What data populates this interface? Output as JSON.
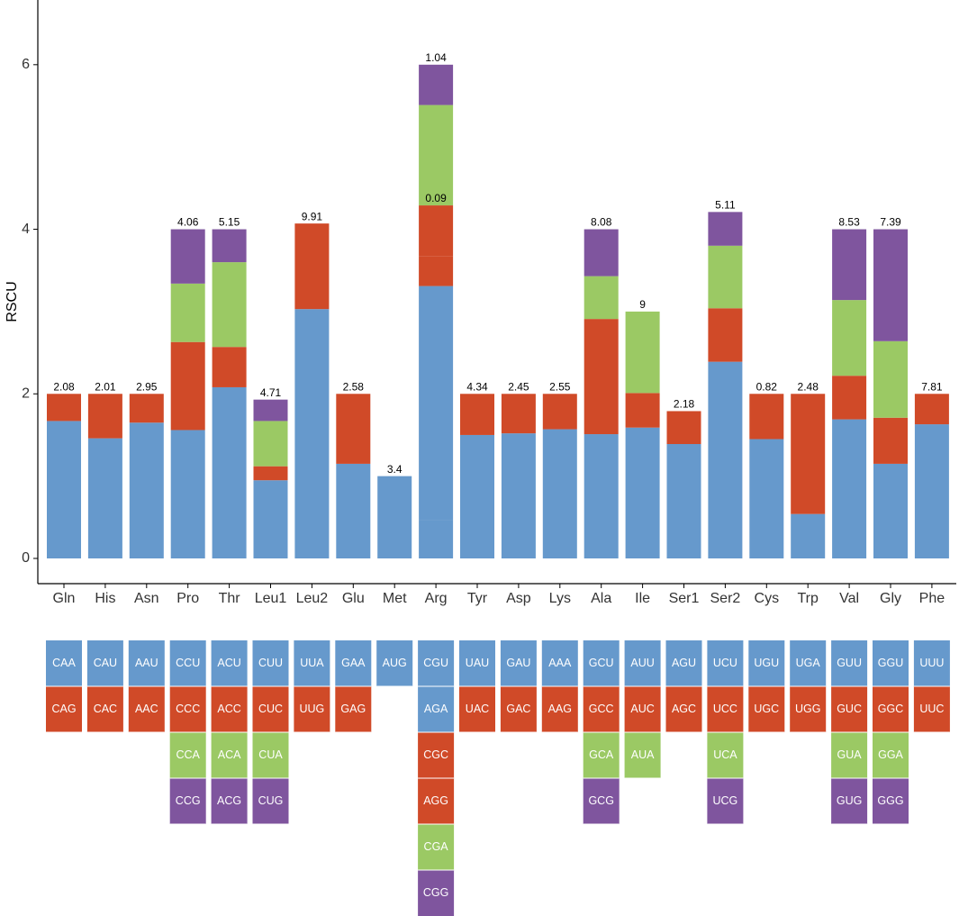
{
  "chart_data": {
    "type": "stacked-bar",
    "y_label": "RSCU",
    "categories": [
      "Gln",
      "His",
      "Asn",
      "Pro",
      "Thr",
      "Leu1",
      "Leu2",
      "Glu",
      "Met",
      "Arg",
      "Tyr",
      "Asp",
      "Lys",
      "Ala",
      "Ile",
      "Ser1",
      "Ser2",
      "Cys",
      "Trp",
      "Val",
      "Gly",
      "Phe"
    ],
    "ylim": [
      0,
      6.6
    ],
    "yticks": [
      0,
      2,
      4,
      6
    ],
    "top_labels": [
      "2.08",
      "2.01",
      "2.95",
      "4.06",
      "5.15",
      "4.71",
      "9.91",
      "2.58",
      "3.4",
      "1.04",
      "4.34",
      "2.45",
      "2.55",
      "8.08",
      "9",
      "2.18",
      "5.11",
      "0.82",
      "2.48",
      "8.53",
      "7.39",
      "7.81"
    ],
    "inner_labels": [
      null,
      null,
      null,
      null,
      null,
      null,
      null,
      null,
      null,
      "0.09",
      null,
      null,
      null,
      null,
      null,
      null,
      null,
      null,
      null,
      null,
      null,
      null
    ],
    "series": [
      {
        "color": "#6699cc",
        "values": [
          1.67,
          1.46,
          1.65,
          1.56,
          2.08,
          0.95,
          3.03,
          1.15,
          1.0,
          0.47,
          1.5,
          1.52,
          1.57,
          1.51,
          1.59,
          1.39,
          2.39,
          1.45,
          0.54,
          1.69,
          1.15,
          1.63
        ],
        "codons": [
          "CAA",
          "CAU",
          "AAU",
          "CCU",
          "ACU",
          "CUU",
          "UUA",
          "GAA",
          "AUG",
          "CGU",
          "UAU",
          "GAU",
          "AAA",
          "GCU",
          "AUU",
          "AGU",
          "UCU",
          "UGU",
          "UGA",
          "GUU",
          "GGU",
          "UUU"
        ]
      },
      {
        "color": "#6699cc",
        "values": [
          null,
          null,
          null,
          null,
          null,
          null,
          null,
          null,
          null,
          2.84,
          null,
          null,
          null,
          null,
          null,
          null,
          null,
          null,
          null,
          null,
          null,
          null
        ],
        "codons": [
          null,
          null,
          null,
          null,
          null,
          null,
          null,
          null,
          null,
          "AGA",
          null,
          null,
          null,
          null,
          null,
          null,
          null,
          null,
          null,
          null,
          null,
          null
        ]
      },
      {
        "color": "#d04a28",
        "values": [
          0.33,
          0.54,
          0.35,
          1.07,
          0.49,
          0.17,
          1.04,
          0.85,
          null,
          0.36,
          0.5,
          0.48,
          0.43,
          1.4,
          0.42,
          0.4,
          0.65,
          0.55,
          1.46,
          0.53,
          0.56,
          0.37
        ],
        "codons": [
          "CAG",
          "CAC",
          "AAC",
          "CCC",
          "ACC",
          "CUC",
          "UUG",
          "GAG",
          null,
          "CGC",
          "UAC",
          "GAC",
          "AAG",
          "GCC",
          "AUC",
          "AGC",
          "UCC",
          "UGC",
          "UGG",
          "GUC",
          "GGC",
          "UUC"
        ]
      },
      {
        "color": "#d04a28",
        "values": [
          null,
          null,
          null,
          null,
          null,
          null,
          null,
          null,
          null,
          0.62,
          null,
          null,
          null,
          null,
          null,
          null,
          null,
          null,
          null,
          null,
          null,
          null
        ],
        "codons": [
          null,
          null,
          null,
          null,
          null,
          null,
          null,
          null,
          null,
          "AGG",
          null,
          null,
          null,
          null,
          null,
          null,
          null,
          null,
          null,
          null,
          null,
          null
        ]
      },
      {
        "color": "#9bc964",
        "values": [
          null,
          null,
          null,
          0.71,
          1.03,
          0.55,
          null,
          null,
          null,
          1.22,
          null,
          null,
          null,
          0.52,
          0.99,
          null,
          0.76,
          null,
          null,
          0.92,
          0.93,
          null
        ],
        "codons": [
          null,
          null,
          null,
          "CCA",
          "ACA",
          "CUA",
          null,
          null,
          null,
          "CGA",
          null,
          null,
          null,
          "GCA",
          "AUA",
          null,
          "UCA",
          null,
          null,
          "GUA",
          "GGA",
          null
        ]
      },
      {
        "color": "#7f559e",
        "values": [
          null,
          null,
          null,
          0.66,
          0.4,
          0.26,
          null,
          null,
          null,
          0.49,
          null,
          null,
          null,
          0.57,
          null,
          null,
          0.41,
          null,
          null,
          0.86,
          1.36,
          null
        ],
        "codons": [
          null,
          null,
          null,
          "CCG",
          "ACG",
          "CUG",
          null,
          null,
          null,
          "CGG",
          null,
          null,
          null,
          "GCG",
          null,
          null,
          "UCG",
          null,
          null,
          "GUG",
          "GGG",
          null
        ]
      }
    ]
  }
}
